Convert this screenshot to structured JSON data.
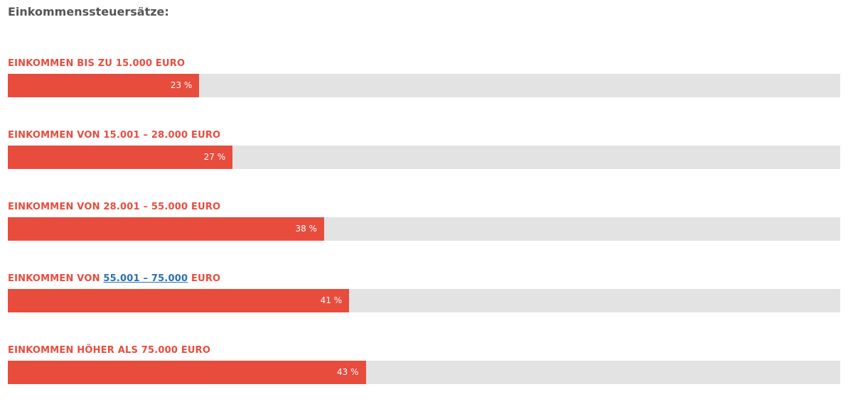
{
  "chart_data": {
    "type": "bar",
    "orientation": "horizontal",
    "title": "Einkommenssteuersätze:",
    "categories": [
      "EINKOMMEN BIS ZU 15.000 EURO",
      "EINKOMMEN VON 15.001 – 28.000 EURO",
      "EINKOMMEN VON 28.001 – 55.000 EURO",
      [
        "EINKOMMEN VON ",
        "55.001 – 75.000",
        " EURO"
      ],
      "EINKOMMEN HÖHER ALS 75.000 EURO"
    ],
    "values": [
      23,
      27,
      38,
      41,
      43
    ],
    "value_labels": [
      "23 %",
      "27 %",
      "38 %",
      "41 %",
      "43 %"
    ],
    "xlim": [
      0,
      100
    ],
    "color": "#e84c3d"
  }
}
